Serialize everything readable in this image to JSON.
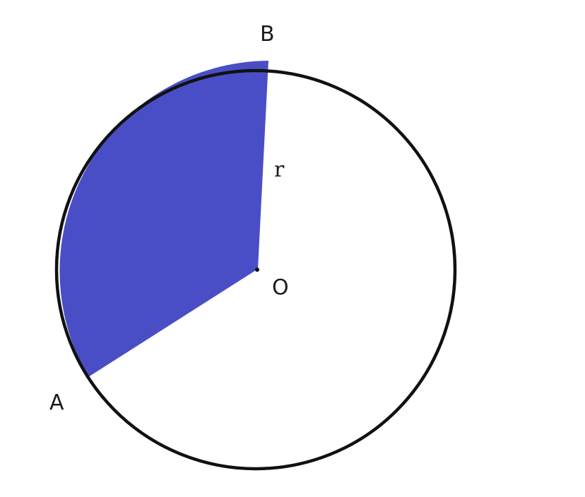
{
  "diagram": {
    "labels": {
      "point_a": "A",
      "point_b": "B",
      "center": "O",
      "radius": "r"
    },
    "colors": {
      "sector_fill": "#4a4ec6",
      "circle_stroke": "#111111",
      "background": "#ffffff"
    }
  }
}
